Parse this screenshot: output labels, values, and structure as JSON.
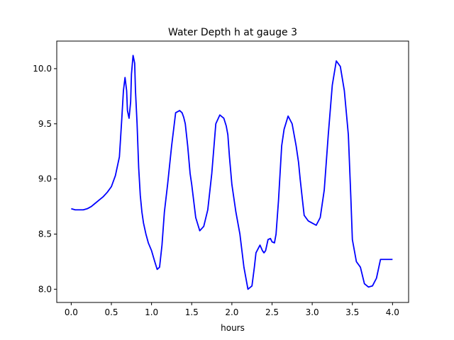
{
  "chart_data": {
    "type": "line",
    "title": "Water Depth h at gauge 3",
    "xlabel": "hours",
    "ylabel": "",
    "xlim": [
      -0.18,
      4.2
    ],
    "ylim": [
      7.88,
      10.25
    ],
    "xticks": [
      0.0,
      0.5,
      1.0,
      1.5,
      2.0,
      2.5,
      3.0,
      3.5,
      4.0
    ],
    "xtick_labels": [
      "0.0",
      "0.5",
      "1.0",
      "1.5",
      "2.0",
      "2.5",
      "3.0",
      "3.5",
      "4.0"
    ],
    "yticks": [
      8.0,
      8.5,
      9.0,
      9.5,
      10.0
    ],
    "ytick_labels": [
      "8.0",
      "8.5",
      "9.0",
      "9.5",
      "10.0"
    ],
    "grid": false,
    "series": [
      {
        "color": "#0000ff",
        "x": [
          0.0,
          0.05,
          0.1,
          0.15,
          0.2,
          0.25,
          0.3,
          0.35,
          0.4,
          0.45,
          0.5,
          0.55,
          0.6,
          0.63,
          0.65,
          0.67,
          0.69,
          0.7,
          0.72,
          0.74,
          0.75,
          0.77,
          0.79,
          0.8,
          0.82,
          0.84,
          0.86,
          0.88,
          0.9,
          0.93,
          0.96,
          1.0,
          1.04,
          1.07,
          1.1,
          1.13,
          1.16,
          1.2,
          1.25,
          1.3,
          1.35,
          1.38,
          1.4,
          1.42,
          1.45,
          1.48,
          1.5,
          1.55,
          1.6,
          1.65,
          1.7,
          1.75,
          1.8,
          1.85,
          1.9,
          1.93,
          1.95,
          1.97,
          2.0,
          2.05,
          2.1,
          2.15,
          2.2,
          2.25,
          2.28,
          2.3,
          2.35,
          2.38,
          2.4,
          2.42,
          2.45,
          2.48,
          2.5,
          2.53,
          2.55,
          2.58,
          2.62,
          2.65,
          2.7,
          2.75,
          2.8,
          2.83,
          2.85,
          2.88,
          2.9,
          2.95,
          3.0,
          3.05,
          3.1,
          3.15,
          3.2,
          3.25,
          3.3,
          3.35,
          3.4,
          3.45,
          3.48,
          3.5,
          3.55,
          3.6,
          3.65,
          3.7,
          3.75,
          3.8,
          3.85,
          3.88,
          3.9,
          3.92,
          3.95,
          4.0
        ],
        "y": [
          8.73,
          8.72,
          8.72,
          8.72,
          8.73,
          8.75,
          8.78,
          8.81,
          8.84,
          8.88,
          8.93,
          9.03,
          9.2,
          9.55,
          9.8,
          9.92,
          9.8,
          9.62,
          9.55,
          9.7,
          9.95,
          10.12,
          10.05,
          9.8,
          9.5,
          9.1,
          8.85,
          8.7,
          8.6,
          8.5,
          8.42,
          8.35,
          8.25,
          8.18,
          8.2,
          8.4,
          8.7,
          8.95,
          9.3,
          9.6,
          9.62,
          9.6,
          9.56,
          9.5,
          9.3,
          9.05,
          8.95,
          8.65,
          8.53,
          8.57,
          8.72,
          9.05,
          9.5,
          9.58,
          9.55,
          9.48,
          9.4,
          9.2,
          8.95,
          8.7,
          8.5,
          8.2,
          8.0,
          8.03,
          8.2,
          8.33,
          8.4,
          8.35,
          8.33,
          8.35,
          8.45,
          8.46,
          8.43,
          8.42,
          8.5,
          8.8,
          9.3,
          9.45,
          9.57,
          9.5,
          9.3,
          9.15,
          9.0,
          8.8,
          8.67,
          8.62,
          8.6,
          8.58,
          8.65,
          8.9,
          9.4,
          9.85,
          10.07,
          10.02,
          9.8,
          9.4,
          8.85,
          8.45,
          8.25,
          8.2,
          8.05,
          8.02,
          8.03,
          8.1,
          8.27,
          8.27,
          8.27,
          8.27,
          8.27,
          8.27
        ]
      }
    ]
  }
}
